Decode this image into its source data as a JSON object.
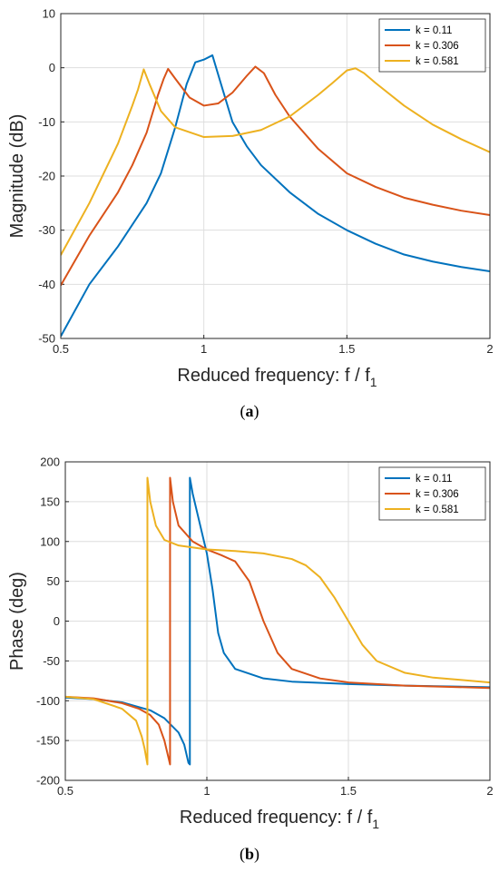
{
  "colors": {
    "series": [
      "#0072BD",
      "#D95319",
      "#EDB120"
    ],
    "grid": "#dedede",
    "axes": "#262626"
  },
  "chart_data": [
    {
      "type": "line",
      "panel": "a",
      "caption": {
        "open": "(",
        "letter": "a",
        "close": ")"
      },
      "xlabel": "Reduced frequency: f / f",
      "xlabel_subscript": "1",
      "ylabel": "Magnitude (dB)",
      "xlim": [
        0.5,
        2
      ],
      "ylim": [
        -50,
        10
      ],
      "xticks": [
        "0.5",
        "1",
        "1.5",
        "2"
      ],
      "yticks": [
        "10",
        "0",
        "-10",
        "-20",
        "-30",
        "-40",
        "-50"
      ],
      "grid": true,
      "legend_position": "top-right",
      "series": [
        {
          "name": "k = 0.11",
          "x": [
            0.5,
            0.6,
            0.7,
            0.8,
            0.85,
            0.9,
            0.94,
            0.97,
            1.0,
            1.03,
            1.06,
            1.1,
            1.15,
            1.2,
            1.3,
            1.4,
            1.5,
            1.6,
            1.7,
            1.8,
            1.9,
            2.0
          ],
          "y": [
            -49.6,
            -40,
            -33,
            -25,
            -19.5,
            -11,
            -3,
            1,
            1.5,
            2.3,
            -3,
            -10,
            -14.5,
            -18,
            -23,
            -27,
            -30,
            -32.5,
            -34.5,
            -35.8,
            -36.8,
            -37.6
          ]
        },
        {
          "name": "k = 0.306",
          "x": [
            0.5,
            0.6,
            0.7,
            0.75,
            0.8,
            0.84,
            0.86,
            0.875,
            0.9,
            0.95,
            1.0,
            1.05,
            1.1,
            1.15,
            1.18,
            1.21,
            1.25,
            1.3,
            1.4,
            1.5,
            1.6,
            1.7,
            1.8,
            1.9,
            2.0
          ],
          "y": [
            -40.2,
            -31,
            -23,
            -18,
            -12,
            -5,
            -2,
            -0.2,
            -2,
            -5.5,
            -7,
            -6.6,
            -4.6,
            -1.5,
            0.2,
            -1,
            -5,
            -9,
            -15,
            -19.5,
            -22,
            -24,
            -25.3,
            -26.4,
            -27.2
          ]
        },
        {
          "name": "k = 0.581",
          "x": [
            0.5,
            0.6,
            0.7,
            0.75,
            0.77,
            0.79,
            0.81,
            0.85,
            0.9,
            1.0,
            1.1,
            1.2,
            1.3,
            1.4,
            1.45,
            1.5,
            1.53,
            1.56,
            1.6,
            1.7,
            1.8,
            1.9,
            2.0
          ],
          "y": [
            -34.6,
            -25,
            -14,
            -7,
            -4,
            -0.3,
            -3,
            -8,
            -11,
            -12.8,
            -12.6,
            -11.5,
            -9,
            -5,
            -2.8,
            -0.5,
            -0.1,
            -1,
            -2.8,
            -7,
            -10.5,
            -13.2,
            -15.6
          ]
        }
      ]
    },
    {
      "type": "line",
      "panel": "b",
      "caption": {
        "open": "(",
        "letter": "b",
        "close": ")"
      },
      "xlabel": "Reduced frequency: f / f",
      "xlabel_subscript": "1",
      "ylabel": "Phase (deg)",
      "xlim": [
        0.5,
        2
      ],
      "ylim": [
        -200,
        200
      ],
      "xticks": [
        "0.5",
        "1",
        "1.5",
        "2"
      ],
      "yticks": [
        "200",
        "150",
        "100",
        "50",
        "0",
        "-50",
        "-100",
        "-150",
        "-200"
      ],
      "grid": true,
      "legend_position": "top-right",
      "series": [
        {
          "name": "k = 0.11",
          "x": [
            0.5,
            0.6,
            0.7,
            0.8,
            0.85,
            0.9,
            0.92,
            0.935,
            0.94,
            0.94,
            0.95,
            0.97,
            0.99,
            1.0,
            1.02,
            1.04,
            1.06,
            1.1,
            1.2,
            1.3,
            1.5,
            1.7,
            2.0
          ],
          "y": [
            -96,
            -98,
            -102,
            -112,
            -122,
            -140,
            -155,
            -178,
            -180,
            180,
            160,
            130,
            100,
            85,
            40,
            -15,
            -40,
            -60,
            -72,
            -76,
            -79,
            -81,
            -83
          ]
        },
        {
          "name": "k = 0.306",
          "x": [
            0.5,
            0.6,
            0.7,
            0.76,
            0.8,
            0.83,
            0.85,
            0.86,
            0.87,
            0.87,
            0.88,
            0.9,
            0.95,
            1.0,
            1.05,
            1.1,
            1.15,
            1.2,
            1.25,
            1.3,
            1.4,
            1.5,
            1.7,
            2.0
          ],
          "y": [
            -95,
            -97,
            -103,
            -110,
            -118,
            -130,
            -150,
            -165,
            -180,
            180,
            150,
            120,
            100,
            90,
            83,
            75,
            50,
            0,
            -40,
            -60,
            -72,
            -77,
            -81,
            -84
          ]
        },
        {
          "name": "k = 0.581",
          "x": [
            0.5,
            0.6,
            0.7,
            0.75,
            0.77,
            0.78,
            0.79,
            0.79,
            0.8,
            0.82,
            0.85,
            0.9,
            1.0,
            1.1,
            1.2,
            1.3,
            1.35,
            1.4,
            1.45,
            1.5,
            1.55,
            1.6,
            1.7,
            1.8,
            1.9,
            2.0
          ],
          "y": [
            -95,
            -98,
            -110,
            -125,
            -145,
            -160,
            -180,
            180,
            150,
            120,
            102,
            95,
            90,
            88,
            85,
            78,
            70,
            55,
            30,
            0,
            -30,
            -50,
            -65,
            -71,
            -74,
            -77
          ]
        }
      ]
    }
  ]
}
